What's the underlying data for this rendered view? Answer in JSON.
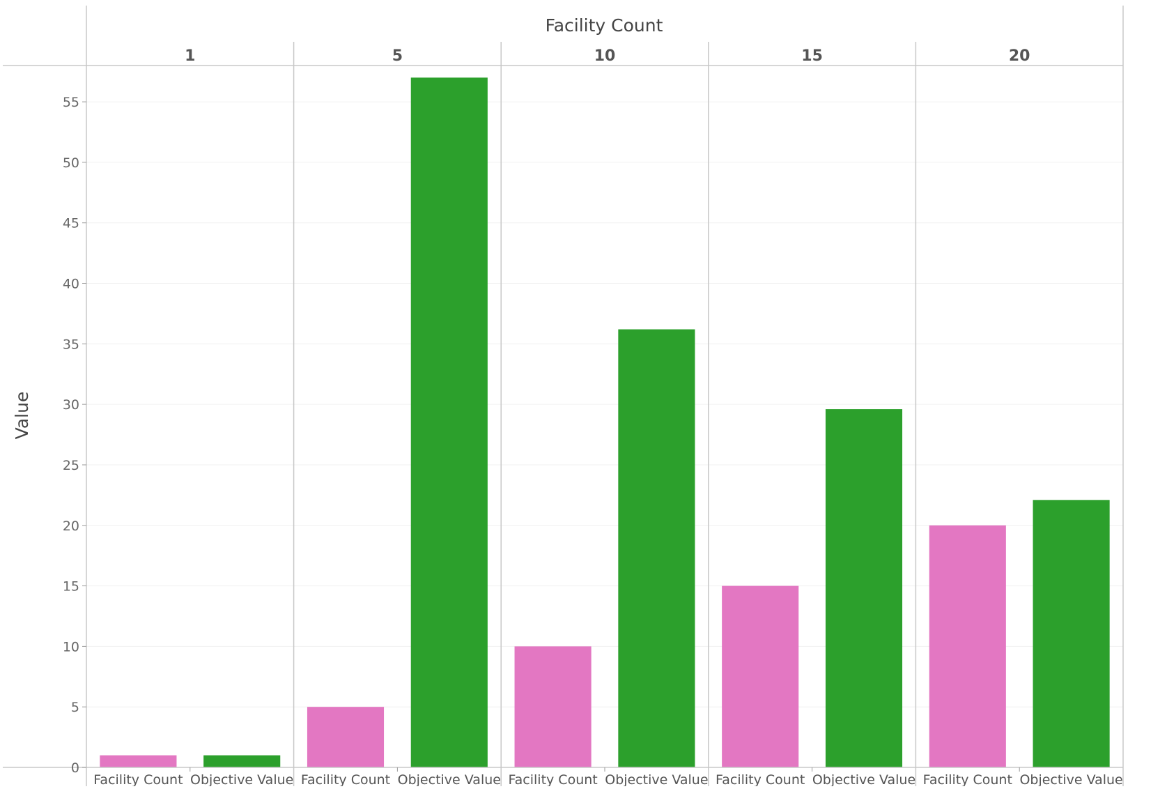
{
  "chart_data": {
    "type": "bar",
    "title": "Facility Count",
    "ylabel": "Value",
    "ylim": [
      0,
      58
    ],
    "yticks": [
      0,
      5,
      10,
      15,
      20,
      25,
      30,
      35,
      40,
      45,
      50,
      55
    ],
    "grid": true,
    "groups": [
      "1",
      "5",
      "10",
      "15",
      "20"
    ],
    "categories": [
      "Facility Count",
      "Objective Value"
    ],
    "colors": {
      "Facility Count": "#e377c2",
      "Objective Value": "#2ca02c"
    },
    "values": [
      {
        "group": "1",
        "Facility Count": 1,
        "Objective Value": 1
      },
      {
        "group": "5",
        "Facility Count": 5,
        "Objective Value": 57
      },
      {
        "group": "10",
        "Facility Count": 10,
        "Objective Value": 36.2
      },
      {
        "group": "15",
        "Facility Count": 15,
        "Objective Value": 29.6
      },
      {
        "group": "20",
        "Facility Count": 20,
        "Objective Value": 22.1
      }
    ]
  }
}
